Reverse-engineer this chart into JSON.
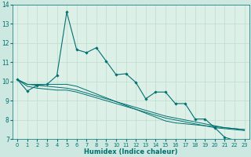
{
  "title": "",
  "xlabel": "Humidex (Indice chaleur)",
  "background_color": "#cce8e0",
  "plot_bg_color": "#ddf0e8",
  "grid_color": "#bbddcc",
  "line_color": "#007070",
  "xlim": [
    -0.5,
    23.5
  ],
  "ylim": [
    7,
    14
  ],
  "yticks": [
    7,
    8,
    9,
    10,
    11,
    12,
    13,
    14
  ],
  "xticks": [
    0,
    1,
    2,
    3,
    4,
    5,
    6,
    7,
    8,
    9,
    10,
    11,
    12,
    13,
    14,
    15,
    16,
    17,
    18,
    19,
    20,
    21,
    22,
    23
  ],
  "main_line": [
    10.1,
    9.5,
    9.8,
    9.85,
    10.3,
    13.6,
    11.65,
    11.5,
    11.75,
    11.05,
    10.35,
    10.4,
    9.95,
    9.1,
    9.45,
    9.45,
    8.85,
    8.85,
    8.05,
    8.05,
    7.6,
    7.1,
    6.95,
    6.85
  ],
  "line2": [
    10.1,
    9.85,
    9.85,
    9.85,
    9.85,
    9.85,
    9.75,
    9.55,
    9.35,
    9.15,
    8.95,
    8.75,
    8.55,
    8.35,
    8.15,
    7.95,
    7.85,
    7.8,
    7.75,
    7.7,
    7.65,
    7.6,
    7.55,
    7.5
  ],
  "line3": [
    10.1,
    9.85,
    9.8,
    9.75,
    9.7,
    9.65,
    9.55,
    9.4,
    9.25,
    9.1,
    8.95,
    8.8,
    8.65,
    8.5,
    8.35,
    8.2,
    8.1,
    8.0,
    7.9,
    7.8,
    7.7,
    7.6,
    7.55,
    7.5
  ],
  "line4": [
    10.1,
    9.75,
    9.65,
    9.6,
    9.55,
    9.55,
    9.45,
    9.3,
    9.15,
    9.0,
    8.85,
    8.7,
    8.55,
    8.4,
    8.25,
    8.1,
    8.0,
    7.9,
    7.8,
    7.7,
    7.6,
    7.55,
    7.5,
    7.45
  ],
  "figsize": [
    3.2,
    2.0
  ],
  "dpi": 100
}
